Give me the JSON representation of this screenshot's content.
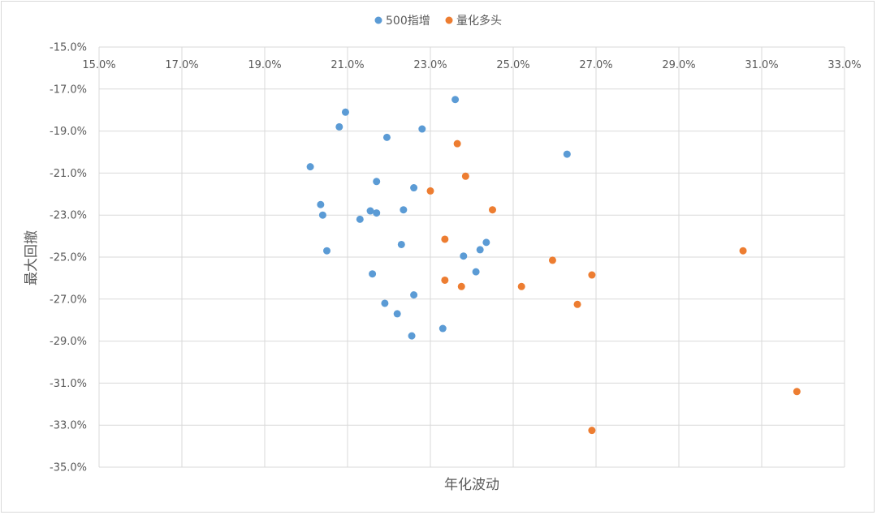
{
  "chart_data": {
    "type": "scatter",
    "title": "",
    "xlabel": "年化波动",
    "ylabel": "最大回撤",
    "xlim": [
      15.0,
      33.0
    ],
    "ylim": [
      -35.0,
      -15.0
    ],
    "x_ticks": [
      "15.0%",
      "17.0%",
      "19.0%",
      "21.0%",
      "23.0%",
      "25.0%",
      "27.0%",
      "29.0%",
      "31.0%",
      "33.0%"
    ],
    "y_ticks": [
      "-15.0%",
      "-17.0%",
      "-19.0%",
      "-21.0%",
      "-23.0%",
      "-25.0%",
      "-27.0%",
      "-29.0%",
      "-31.0%",
      "-33.0%",
      "-35.0%"
    ],
    "grid": true,
    "legend_position": "top",
    "series": [
      {
        "name": "500指增",
        "color": "#5b9bd5",
        "points": [
          [
            20.1,
            -20.7
          ],
          [
            20.35,
            -22.5
          ],
          [
            20.4,
            -23.0
          ],
          [
            20.5,
            -24.7
          ],
          [
            20.8,
            -18.8
          ],
          [
            20.95,
            -18.1
          ],
          [
            21.3,
            -23.2
          ],
          [
            21.55,
            -22.8
          ],
          [
            21.6,
            -25.8
          ],
          [
            21.7,
            -22.9
          ],
          [
            21.7,
            -21.4
          ],
          [
            21.9,
            -27.2
          ],
          [
            21.95,
            -19.3
          ],
          [
            22.2,
            -27.7
          ],
          [
            22.3,
            -24.4
          ],
          [
            22.35,
            -22.75
          ],
          [
            22.55,
            -28.75
          ],
          [
            22.6,
            -26.8
          ],
          [
            22.6,
            -21.7
          ],
          [
            22.8,
            -18.9
          ],
          [
            23.3,
            -28.4
          ],
          [
            23.6,
            -17.5
          ],
          [
            23.8,
            -24.95
          ],
          [
            24.1,
            -25.7
          ],
          [
            24.2,
            -24.65
          ],
          [
            24.35,
            -24.3
          ],
          [
            26.3,
            -20.1
          ]
        ]
      },
      {
        "name": "量化多头",
        "color": "#ed7d31",
        "points": [
          [
            23.0,
            -21.85
          ],
          [
            23.35,
            -26.1
          ],
          [
            23.35,
            -24.15
          ],
          [
            23.65,
            -19.6
          ],
          [
            23.75,
            -26.4
          ],
          [
            23.85,
            -21.15
          ],
          [
            24.5,
            -22.75
          ],
          [
            25.2,
            -26.4
          ],
          [
            25.95,
            -25.15
          ],
          [
            26.55,
            -27.25
          ],
          [
            26.9,
            -25.85
          ],
          [
            26.9,
            -33.25
          ],
          [
            30.55,
            -24.7
          ],
          [
            31.85,
            -31.4
          ]
        ]
      }
    ]
  }
}
